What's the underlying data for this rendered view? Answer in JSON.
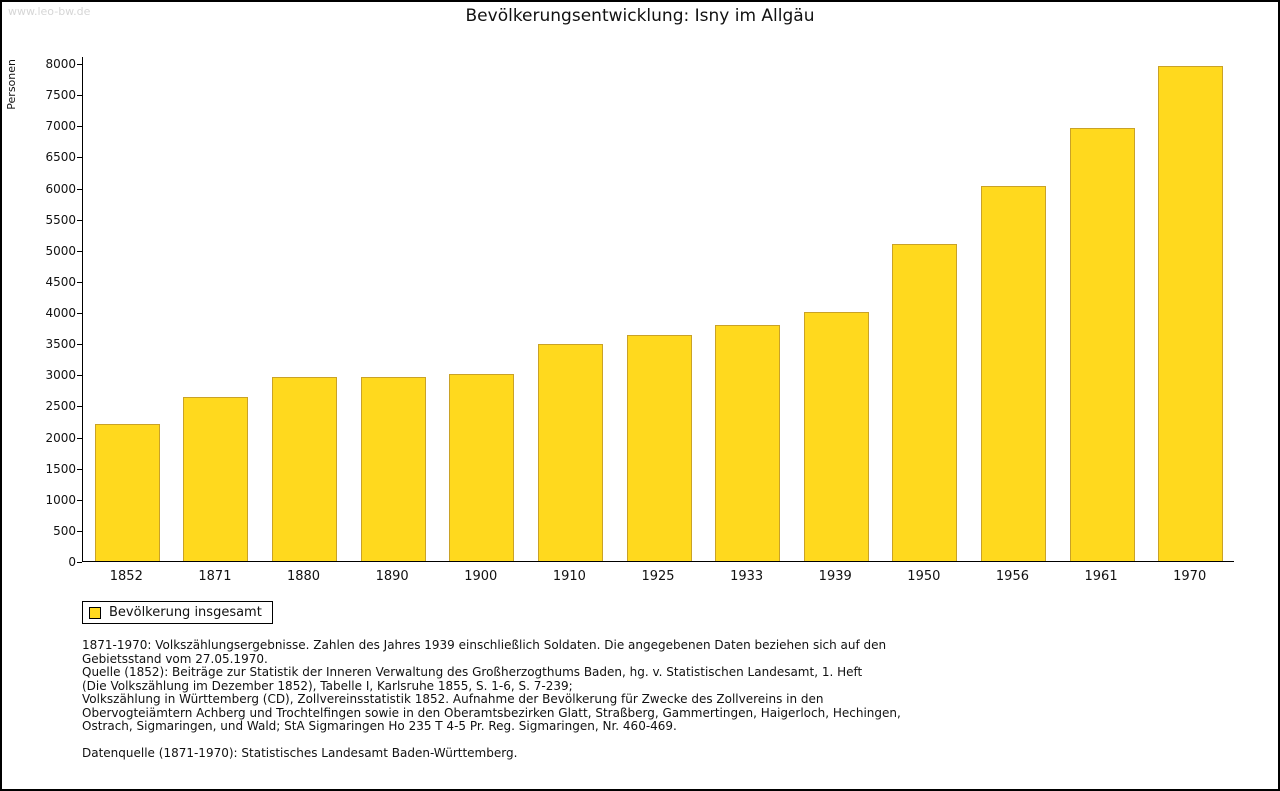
{
  "watermark": "www.leo-bw.de",
  "title": "Bevölkerungsentwicklung: Isny im Allgäu",
  "chart_data": {
    "type": "bar",
    "title": "Bevölkerungsentwicklung: Isny im Allgäu",
    "xlabel": "",
    "ylabel": "Personen",
    "categories": [
      "1852",
      "1871",
      "1880",
      "1890",
      "1900",
      "1910",
      "1925",
      "1933",
      "1939",
      "1950",
      "1956",
      "1961",
      "1970"
    ],
    "values": [
      2200,
      2640,
      2950,
      2950,
      3000,
      3490,
      3630,
      3790,
      4000,
      5100,
      6030,
      6950,
      7960
    ],
    "ylim": [
      0,
      8000
    ],
    "ytick_step": 500,
    "grid": false,
    "bar_color": "#FFD91E",
    "bar_border_color": "#C9A227",
    "legend_entries": [
      "Bevölkerung insgesamt"
    ],
    "legend_position": "bottom-left"
  },
  "legend": {
    "label": "Bevölkerung insgesamt",
    "swatch_color": "#FFD91E"
  },
  "footnotes": {
    "lines": [
      "1871-1970: Volkszählungsergebnisse. Zahlen des Jahres 1939 einschließlich Soldaten. Die angegebenen Daten beziehen sich auf den",
      "Gebietsstand vom 27.05.1970.",
      "Quelle (1852): Beiträge zur Statistik der Inneren Verwaltung des Großherzogthums Baden, hg. v. Statistischen Landesamt, 1. Heft",
      "(Die Volkszählung im Dezember 1852), Tabelle I, Karlsruhe 1855, S. 1-6, S. 7-239;",
      "Volkszählung in Württemberg (CD), Zollvereinsstatistik 1852. Aufnahme der Bevölkerung für Zwecke des Zollvereins in den",
      "Obervogteiämtern Achberg und Trochtelfingen sowie in den Oberamtsbezirken Glatt, Straßberg, Gammertingen, Haigerloch, Hechingen,",
      "Ostrach, Sigmaringen, und Wald; StA Sigmaringen Ho 235 T 4-5 Pr. Reg. Sigmaringen, Nr. 460-469.",
      "",
      "Datenquelle (1871-1970): Statistisches Landesamt Baden-Württemberg."
    ]
  }
}
